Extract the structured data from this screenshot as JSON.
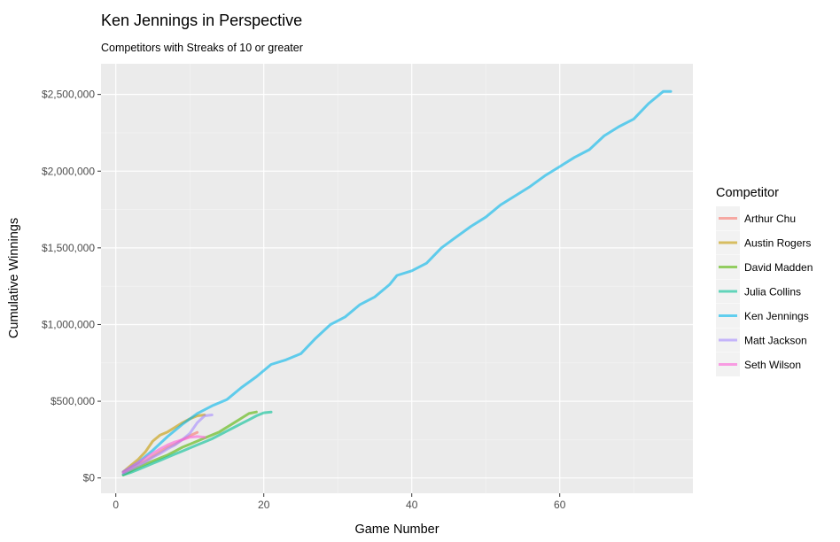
{
  "chart_data": {
    "type": "line",
    "title": "Ken Jennings in Perspective",
    "subtitle": "Competitors with Streaks of 10 or greater",
    "xlabel": "Game Number",
    "ylabel": "Cumulative Winnings",
    "xlim": [
      -2,
      78
    ],
    "ylim": [
      -100000,
      2700000
    ],
    "x_ticks": [
      0,
      20,
      40,
      60
    ],
    "x_tick_labels": [
      "0",
      "20",
      "40",
      "60"
    ],
    "y_ticks": [
      0,
      500000,
      1000000,
      1500000,
      2000000,
      2500000
    ],
    "y_tick_labels": [
      "$0",
      "$500,000",
      "$1,000,000",
      "$1,500,000",
      "$2,000,000",
      "$2,500,000"
    ],
    "grid": true,
    "legend_position": "right",
    "legend_title": "Competitor",
    "series": [
      {
        "name": "Arthur Chu",
        "color": "#F8766D",
        "x": [
          1,
          2,
          3,
          4,
          5,
          6,
          7,
          8,
          9,
          10,
          11
        ],
        "y": [
          35000,
          60000,
          90000,
          110000,
          140000,
          170000,
          200000,
          220000,
          250000,
          275000,
          297000
        ]
      },
      {
        "name": "Austin Rogers",
        "color": "#C49A00",
        "x": [
          1,
          2,
          3,
          4,
          5,
          6,
          7,
          8,
          9,
          10,
          11,
          12
        ],
        "y": [
          40000,
          80000,
          120000,
          170000,
          240000,
          280000,
          300000,
          330000,
          360000,
          385000,
          405000,
          411000
        ]
      },
      {
        "name": "David Madden",
        "color": "#53B400",
        "x": [
          1,
          2,
          3,
          4,
          5,
          6,
          7,
          8,
          9,
          10,
          11,
          12,
          13,
          14,
          15,
          16,
          17,
          18,
          19
        ],
        "y": [
          20000,
          45000,
          70000,
          90000,
          110000,
          130000,
          150000,
          175000,
          200000,
          220000,
          240000,
          260000,
          280000,
          300000,
          330000,
          360000,
          390000,
          420000,
          430000
        ]
      },
      {
        "name": "Julia Collins",
        "color": "#00C094",
        "x": [
          1,
          2,
          3,
          4,
          5,
          6,
          7,
          8,
          9,
          10,
          11,
          12,
          13,
          14,
          15,
          16,
          17,
          18,
          19,
          20,
          21
        ],
        "y": [
          20000,
          35000,
          55000,
          75000,
          95000,
          115000,
          135000,
          155000,
          175000,
          195000,
          215000,
          235000,
          255000,
          280000,
          305000,
          330000,
          355000,
          380000,
          405000,
          425000,
          430000
        ]
      },
      {
        "name": "Ken Jennings",
        "color": "#00B6EB",
        "x": [
          1,
          3,
          5,
          7,
          9,
          11,
          13,
          15,
          17,
          19,
          21,
          23,
          25,
          27,
          29,
          31,
          33,
          35,
          37,
          38,
          40,
          42,
          44,
          46,
          48,
          50,
          52,
          54,
          56,
          58,
          60,
          62,
          64,
          66,
          68,
          70,
          72,
          74,
          75
        ],
        "y": [
          40000,
          100000,
          180000,
          270000,
          350000,
          420000,
          470000,
          510000,
          590000,
          660000,
          740000,
          770000,
          810000,
          910000,
          1000000,
          1050000,
          1130000,
          1180000,
          1260000,
          1320000,
          1350000,
          1400000,
          1500000,
          1570000,
          1640000,
          1700000,
          1780000,
          1840000,
          1900000,
          1970000,
          2030000,
          2090000,
          2140000,
          2230000,
          2290000,
          2340000,
          2440000,
          2520000,
          2520000
        ]
      },
      {
        "name": "Matt Jackson",
        "color": "#A58AFF",
        "x": [
          1,
          2,
          3,
          4,
          5,
          6,
          7,
          8,
          9,
          10,
          11,
          12,
          13
        ],
        "y": [
          30000,
          55000,
          80000,
          105000,
          135000,
          160000,
          190000,
          215000,
          250000,
          290000,
          360000,
          405000,
          411000
        ]
      },
      {
        "name": "Seth Wilson",
        "color": "#FB61D7",
        "x": [
          1,
          2,
          3,
          4,
          5,
          6,
          7,
          8,
          9,
          10,
          11,
          12
        ],
        "y": [
          40000,
          70000,
          100000,
          130000,
          160000,
          190000,
          215000,
          235000,
          250000,
          265000,
          270000,
          265000
        ]
      }
    ]
  }
}
